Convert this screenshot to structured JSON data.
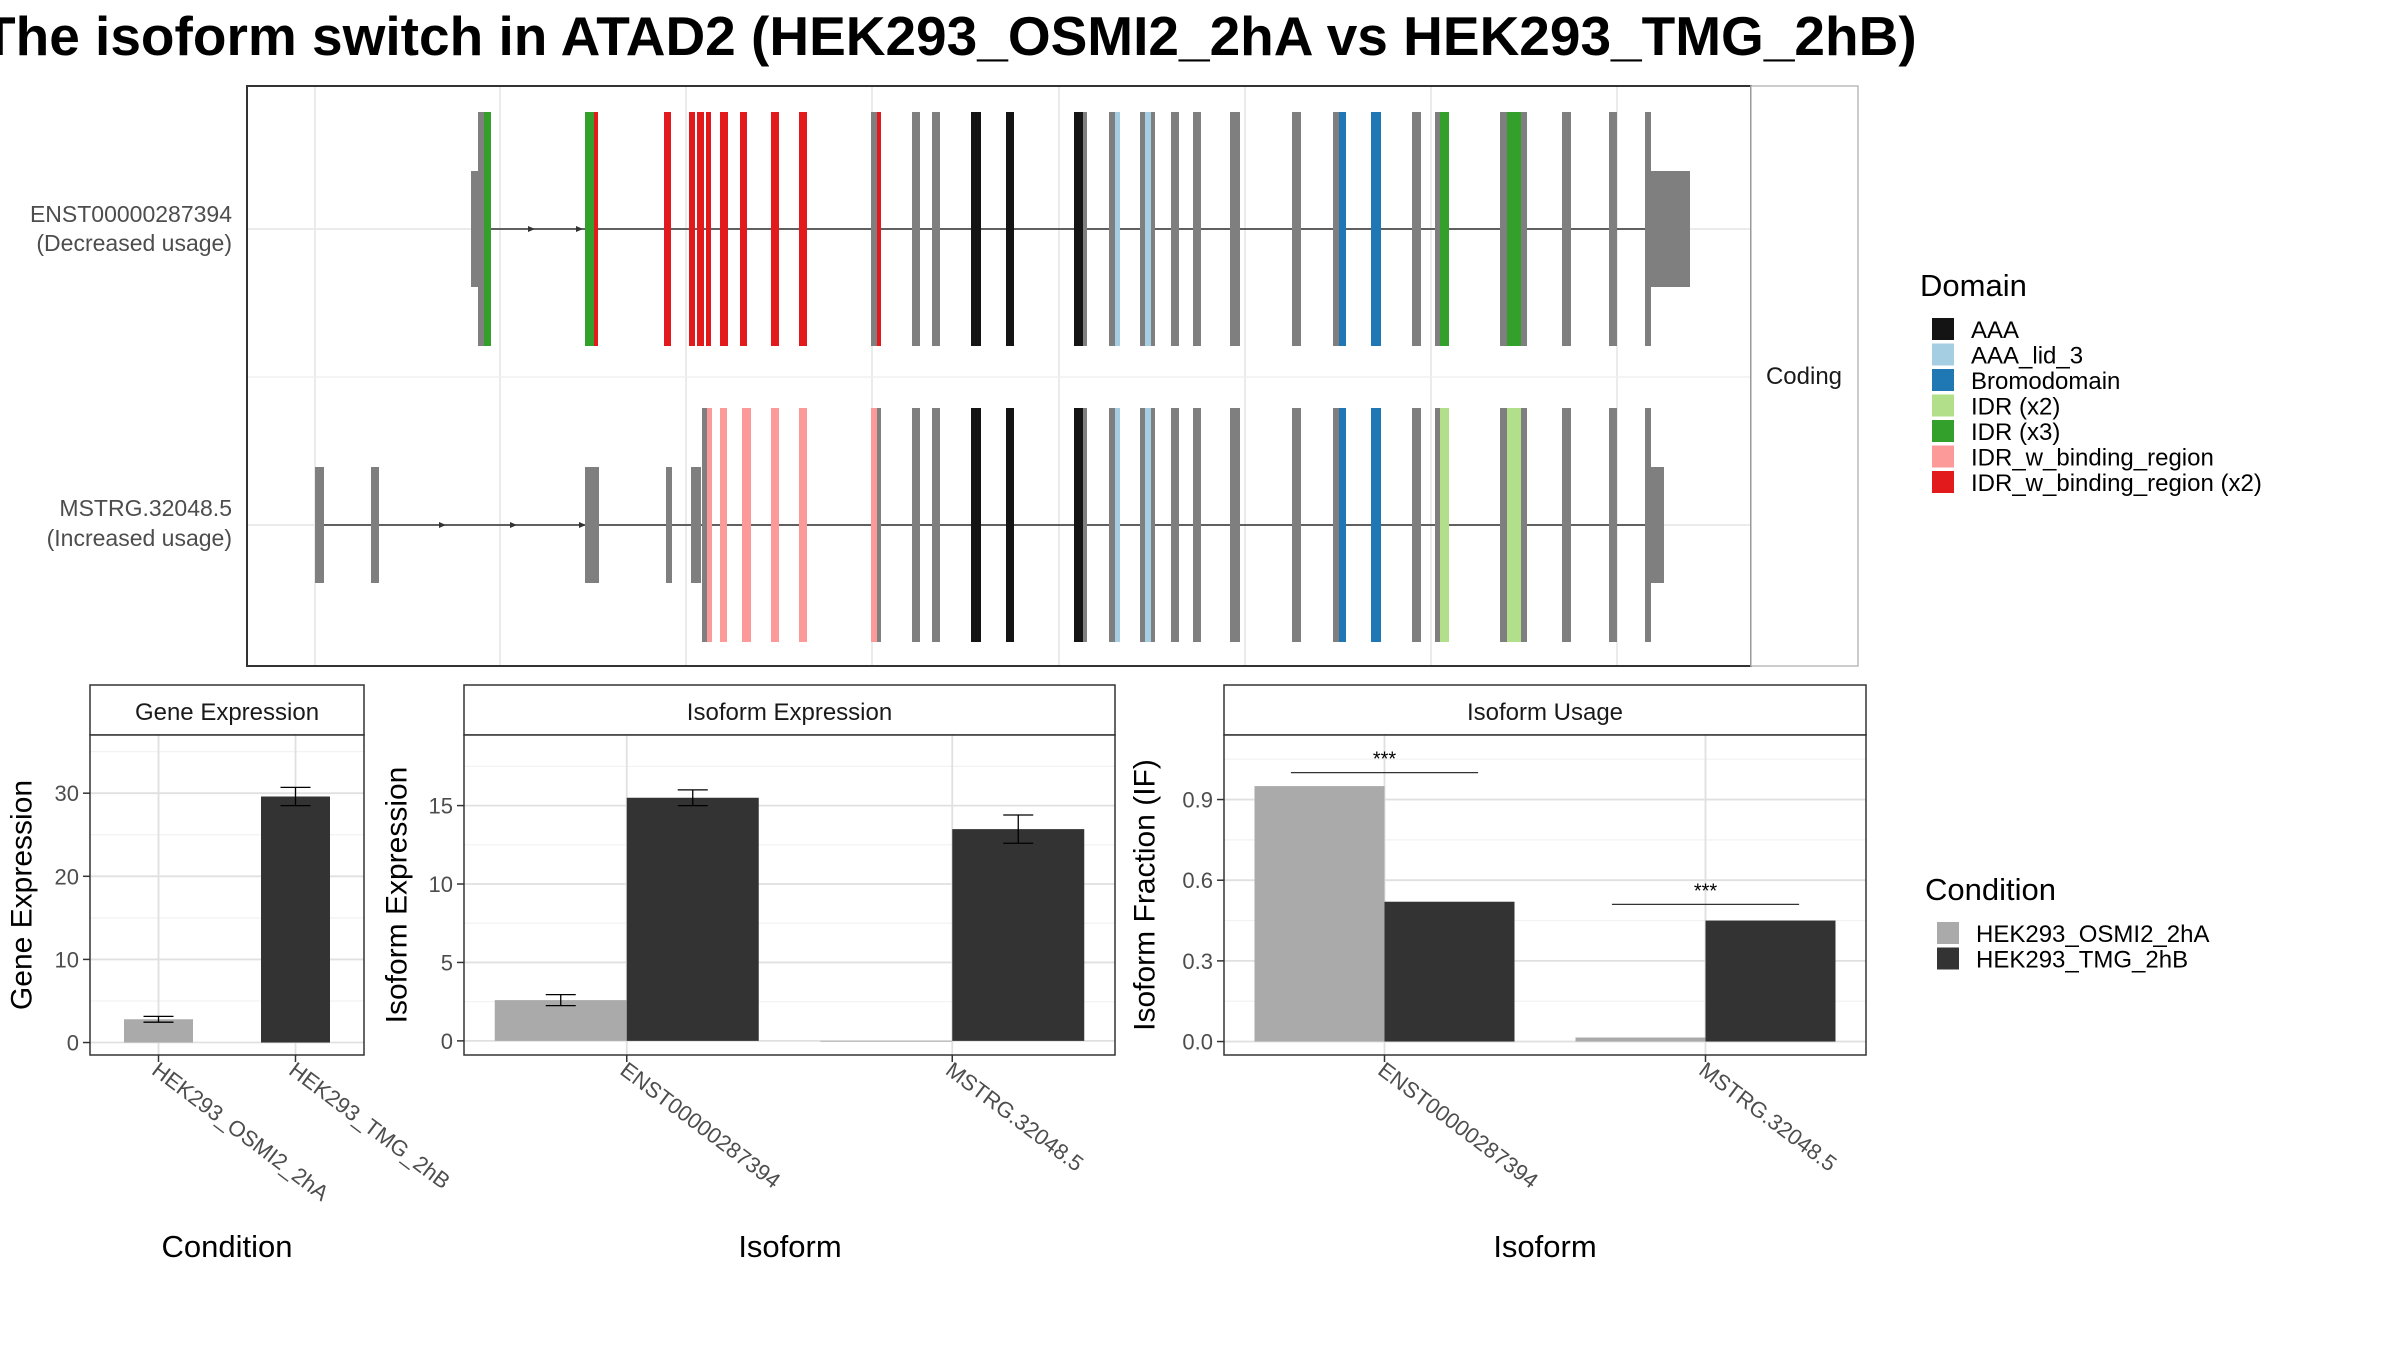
{
  "title": "The isoform switch in ATAD2 (HEK293_OSMI2_2hA vs HEK293_TMG_2hB)",
  "structure": {
    "facet_label": "Coding",
    "isoforms": [
      {
        "id": "ENST00000287394",
        "usage": "(Decreased usage)"
      },
      {
        "id": "MSTRG.32048.5",
        "usage": "(Increased usage)"
      }
    ]
  },
  "domain_legend": {
    "title": "Domain",
    "items": [
      {
        "label": "AAA",
        "color": "#141414"
      },
      {
        "label": "AAA_lid_3",
        "color": "#a6cee3"
      },
      {
        "label": "Bromodomain",
        "color": "#1f78b4"
      },
      {
        "label": "IDR (x2)",
        "color": "#b2df8a"
      },
      {
        "label": "IDR (x3)",
        "color": "#33a02c"
      },
      {
        "label": "IDR_w_binding_region",
        "color": "#fb9a99"
      },
      {
        "label": "IDR_w_binding_region (x2)",
        "color": "#e31a1c"
      }
    ]
  },
  "condition_legend": {
    "title": "Condition",
    "items": [
      {
        "label": "HEK293_OSMI2_2hA",
        "color": "#aaaaaa"
      },
      {
        "label": "HEK293_TMG_2hB",
        "color": "#333333"
      }
    ]
  },
  "colors": {
    "gray_exon": "#7f7f7f",
    "cond_a": "#aaaaaa",
    "cond_b": "#333333"
  },
  "chart_data": [
    {
      "type": "bar",
      "title": "Gene Expression",
      "xlabel": "Condition",
      "ylabel": "Gene Expression",
      "categories": [
        "HEK293_OSMI2_2hA",
        "HEK293_TMG_2hB"
      ],
      "ylim": [
        -1.5,
        37
      ],
      "yticks": [
        0,
        10,
        20,
        30
      ],
      "series": [
        {
          "values": [
            2.8,
            29.6
          ],
          "errors": [
            0.35,
            1.1
          ]
        }
      ]
    },
    {
      "type": "bar",
      "title": "Isoform Expression",
      "xlabel": "Isoform",
      "ylabel": "Isoform Expression",
      "categories": [
        "ENST00000287394",
        "MSTRG.32048.5"
      ],
      "ylim": [
        -0.9,
        19.5
      ],
      "yticks": [
        0,
        5,
        10,
        15
      ],
      "series": [
        {
          "name": "HEK293_OSMI2_2hA",
          "values": [
            2.6,
            0.0
          ],
          "errors": [
            0.35,
            0.0
          ]
        },
        {
          "name": "HEK293_TMG_2hB",
          "values": [
            15.5,
            13.5
          ],
          "errors": [
            0.5,
            0.9
          ]
        }
      ]
    },
    {
      "type": "bar",
      "title": "Isoform Usage",
      "xlabel": "Isoform",
      "ylabel": "Isoform Fraction (IF)",
      "categories": [
        "ENST00000287394",
        "MSTRG.32048.5"
      ],
      "ylim": [
        -0.05,
        1.14
      ],
      "yticks": [
        0.0,
        0.3,
        0.6,
        0.9
      ],
      "series": [
        {
          "name": "HEK293_OSMI2_2hA",
          "values": [
            0.95,
            0.015
          ]
        },
        {
          "name": "HEK293_TMG_2hB",
          "values": [
            0.52,
            0.45
          ]
        }
      ],
      "annotations": [
        {
          "category": "ENST00000287394",
          "text": "***",
          "y": 1.0
        },
        {
          "category": "MSTRG.32048.5",
          "text": "***",
          "y": 0.51
        }
      ]
    }
  ]
}
